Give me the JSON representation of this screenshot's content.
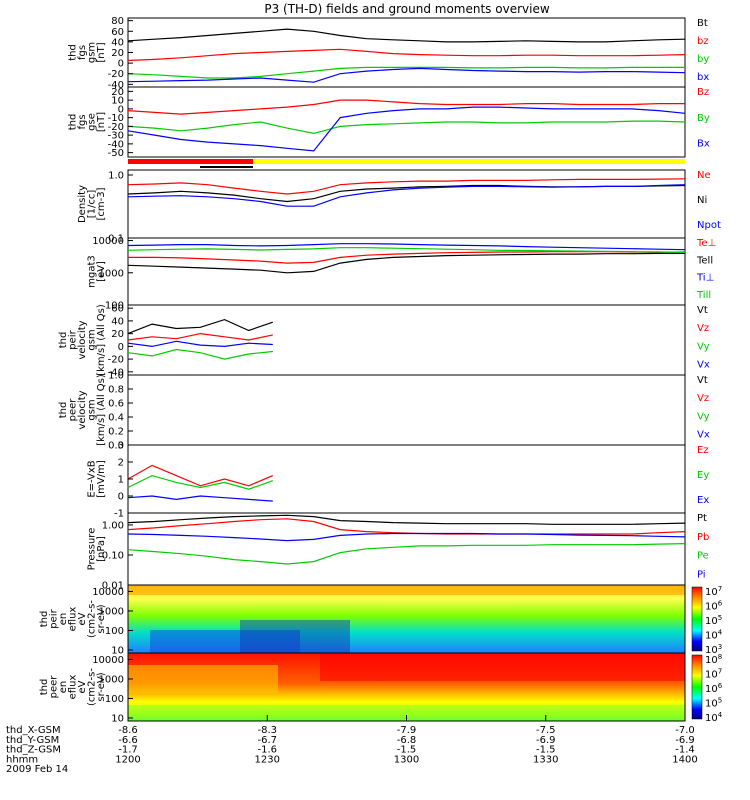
{
  "title": "P3 (TH-D) fields and ground moments overview",
  "colors": {
    "black": "#000000",
    "red": "#ff0000",
    "green": "#00cc00",
    "blue": "#0000ff",
    "yellow": "#ffff00"
  },
  "chart_data": [
    {
      "type": "line",
      "id": "fgs_gsm",
      "ylabel": [
        "thd",
        "fgs",
        "gsm",
        "[nT]"
      ],
      "yticks": [
        "80",
        "60",
        "40",
        "20",
        "0",
        "-20",
        "-40"
      ],
      "ylim": [
        -45,
        85
      ],
      "series": [
        {
          "name": "Bt",
          "color": "black",
          "y": [
            42,
            45,
            48,
            52,
            56,
            60,
            64,
            60,
            52,
            46,
            44,
            42,
            40,
            40,
            41,
            42,
            41,
            40,
            40,
            42,
            44,
            45
          ]
        },
        {
          "name": "bz",
          "color": "red",
          "y": [
            5,
            7,
            10,
            14,
            18,
            20,
            22,
            24,
            26,
            22,
            18,
            16,
            15,
            14,
            14,
            15,
            15,
            14,
            14,
            14,
            15,
            16
          ]
        },
        {
          "name": "by",
          "color": "green",
          "y": [
            -20,
            -22,
            -25,
            -28,
            -28,
            -25,
            -20,
            -15,
            -10,
            -8,
            -8,
            -8,
            -8,
            -9,
            -9,
            -8,
            -8,
            -9,
            -9,
            -8,
            -8,
            -8
          ]
        },
        {
          "name": "bx",
          "color": "blue",
          "y": [
            -35,
            -34,
            -33,
            -32,
            -30,
            -28,
            -32,
            -36,
            -20,
            -15,
            -12,
            -10,
            -12,
            -14,
            -15,
            -16,
            -16,
            -17,
            -16,
            -16,
            -17,
            -18
          ]
        }
      ]
    },
    {
      "type": "line",
      "id": "fgs_gse",
      "ylabel": [
        "thd",
        "fgs",
        "gse",
        "[nT]"
      ],
      "yticks": [
        "20",
        "10",
        "0",
        "-10",
        "-20",
        "-30",
        "-40",
        "-50"
      ],
      "ylim": [
        -55,
        25
      ],
      "series": [
        {
          "name": "Bz",
          "color": "red",
          "y": [
            -2,
            -4,
            -6,
            -4,
            -2,
            0,
            2,
            5,
            10,
            10,
            8,
            6,
            5,
            5,
            5,
            6,
            6,
            5,
            5,
            5,
            6,
            6
          ]
        },
        {
          "name": "By",
          "color": "green",
          "y": [
            -20,
            -22,
            -25,
            -22,
            -18,
            -15,
            -22,
            -28,
            -20,
            -18,
            -17,
            -16,
            -15,
            -15,
            -16,
            -16,
            -15,
            -15,
            -15,
            -14,
            -14,
            -15
          ]
        },
        {
          "name": "Bx",
          "color": "blue",
          "y": [
            -25,
            -30,
            -35,
            -38,
            -40,
            -42,
            -45,
            -48,
            -10,
            -5,
            -2,
            0,
            0,
            2,
            2,
            1,
            0,
            0,
            0,
            0,
            -2,
            -5
          ]
        }
      ]
    },
    {
      "type": "line",
      "id": "density",
      "ylabel": [
        "Density",
        "[1/cc]",
        "[cm-3]"
      ],
      "yticks": [
        "1.0",
        "0.1"
      ],
      "log": true,
      "ylim": [
        0.1,
        1.2
      ],
      "series": [
        {
          "name": "Ne",
          "color": "red",
          "y": [
            0.7,
            0.72,
            0.75,
            0.7,
            0.62,
            0.55,
            0.5,
            0.55,
            0.7,
            0.75,
            0.78,
            0.8,
            0.8,
            0.82,
            0.82,
            0.82,
            0.84,
            0.85,
            0.85,
            0.85,
            0.86,
            0.87
          ]
        },
        {
          "name": "Ni",
          "color": "black",
          "y": [
            0.5,
            0.52,
            0.55,
            0.52,
            0.48,
            0.42,
            0.38,
            0.42,
            0.55,
            0.6,
            0.62,
            0.65,
            0.66,
            0.68,
            0.68,
            0.66,
            0.65,
            0.65,
            0.66,
            0.66,
            0.67,
            0.68
          ]
        },
        {
          "name": "Npot",
          "color": "blue",
          "y": [
            0.45,
            0.46,
            0.47,
            0.45,
            0.42,
            0.38,
            0.32,
            0.32,
            0.45,
            0.52,
            0.58,
            0.62,
            0.64,
            0.66,
            0.66,
            0.65,
            0.64,
            0.65,
            0.66,
            0.66,
            0.68,
            0.7
          ]
        }
      ]
    },
    {
      "type": "line",
      "id": "temperature",
      "ylabel": [
        "mgat3",
        "[eV]"
      ],
      "yticks": [
        "10000",
        "1000",
        "100"
      ],
      "log": true,
      "ylim": [
        100,
        12000
      ],
      "series": [
        {
          "name": "Te⊥",
          "color": "red",
          "y": [
            3000,
            3000,
            2900,
            2700,
            2500,
            2300,
            2000,
            2100,
            3000,
            3500,
            3800,
            4000,
            4200,
            4300,
            4400,
            4400,
            4500,
            4500,
            4500,
            4400,
            4300,
            4400
          ]
        },
        {
          "name": "Tell",
          "color": "black",
          "y": [
            1700,
            1600,
            1500,
            1400,
            1300,
            1200,
            1000,
            1100,
            2000,
            2600,
            3000,
            3200,
            3400,
            3500,
            3600,
            3700,
            3800,
            3800,
            3900,
            3900,
            4000,
            4000
          ]
        },
        {
          "name": "Ti⊥",
          "color": "blue",
          "y": [
            7000,
            7200,
            7500,
            7500,
            7000,
            6800,
            7000,
            7500,
            8000,
            8000,
            7800,
            7500,
            7200,
            7000,
            6800,
            6500,
            6200,
            6000,
            5800,
            5600,
            5400,
            5200
          ]
        },
        {
          "name": "Till",
          "color": "green",
          "y": [
            5000,
            5200,
            5400,
            5500,
            5300,
            5100,
            5300,
            5500,
            6000,
            6000,
            5800,
            5600,
            5400,
            5200,
            5000,
            4900,
            4800,
            4700,
            4600,
            4500,
            4400,
            4300
          ]
        }
      ]
    },
    {
      "type": "line",
      "id": "peir_velocity",
      "ylabel": [
        "thd",
        "peir",
        "velocity",
        "gsm",
        "[km/s] (All Qs)"
      ],
      "yticks": [
        "60",
        "40",
        "20",
        "0",
        "-20",
        "-40"
      ],
      "ylim": [
        -45,
        65
      ],
      "xrange": [
        0,
        0.26
      ],
      "series": [
        {
          "name": "Vt",
          "color": "black",
          "y": [
            20,
            35,
            28,
            30,
            42,
            25,
            38
          ]
        },
        {
          "name": "Vz",
          "color": "red",
          "y": [
            10,
            15,
            12,
            20,
            15,
            10,
            18
          ]
        },
        {
          "name": "Vy",
          "color": "green",
          "y": [
            -10,
            -15,
            -5,
            -10,
            -20,
            -12,
            -8
          ]
        },
        {
          "name": "Vx",
          "color": "blue",
          "y": [
            5,
            0,
            8,
            2,
            0,
            5,
            3
          ]
        }
      ]
    },
    {
      "type": "line",
      "id": "peer_velocity",
      "ylabel": [
        "thd",
        "peer",
        "velocity",
        "gsm",
        "[km/s] (All Qs)"
      ],
      "yticks": [
        "1.0",
        "0.8",
        "0.6",
        "0.4",
        "0.2",
        "0.0"
      ],
      "ylim": [
        0,
        1.0
      ],
      "series": [
        {
          "name": "Vt",
          "color": "black",
          "y": []
        },
        {
          "name": "Vz",
          "color": "red",
          "y": []
        },
        {
          "name": "Vy",
          "color": "green",
          "y": []
        },
        {
          "name": "Vx",
          "color": "blue",
          "y": []
        }
      ]
    },
    {
      "type": "line",
      "id": "efield",
      "ylabel": [
        "E=-VxB",
        "[mV/m]"
      ],
      "yticks": [
        "3",
        "2",
        "1",
        "0",
        "-1"
      ],
      "ylim": [
        -1,
        3
      ],
      "xrange": [
        0,
        0.26
      ],
      "series": [
        {
          "name": "Ez",
          "color": "red",
          "y": [
            1.0,
            1.8,
            1.2,
            0.6,
            1.0,
            0.6,
            1.2
          ]
        },
        {
          "name": "Ey",
          "color": "green",
          "y": [
            0.5,
            1.2,
            0.8,
            0.5,
            0.8,
            0.4,
            0.9
          ]
        },
        {
          "name": "Ex",
          "color": "blue",
          "y": [
            -0.1,
            0.0,
            -0.2,
            0.0,
            -0.1,
            -0.2,
            -0.3
          ]
        }
      ]
    },
    {
      "type": "line",
      "id": "pressure",
      "ylabel": [
        "Pressure",
        "[nPa]"
      ],
      "yticks": [
        "1.00",
        "0.10",
        "0.01"
      ],
      "log": true,
      "ylim": [
        0.01,
        2.5
      ],
      "series": [
        {
          "name": "Pt",
          "color": "black",
          "y": [
            1.2,
            1.3,
            1.5,
            1.7,
            1.9,
            2.0,
            2.1,
            1.9,
            1.4,
            1.3,
            1.2,
            1.15,
            1.1,
            1.1,
            1.1,
            1.1,
            1.05,
            1.05,
            1.05,
            1.05,
            1.1,
            1.15
          ]
        },
        {
          "name": "Pb",
          "color": "red",
          "y": [
            0.7,
            0.8,
            0.95,
            1.1,
            1.3,
            1.5,
            1.6,
            1.3,
            0.7,
            0.6,
            0.55,
            0.52,
            0.5,
            0.5,
            0.5,
            0.5,
            0.5,
            0.5,
            0.5,
            0.5,
            0.55,
            0.6
          ]
        },
        {
          "name": "Pe",
          "color": "green",
          "y": [
            0.15,
            0.13,
            0.11,
            0.09,
            0.07,
            0.06,
            0.05,
            0.06,
            0.12,
            0.16,
            0.18,
            0.2,
            0.2,
            0.21,
            0.21,
            0.21,
            0.22,
            0.22,
            0.22,
            0.22,
            0.23,
            0.24
          ]
        },
        {
          "name": "Pi",
          "color": "blue",
          "y": [
            0.5,
            0.48,
            0.45,
            0.42,
            0.38,
            0.34,
            0.3,
            0.33,
            0.45,
            0.5,
            0.52,
            0.52,
            0.52,
            0.52,
            0.5,
            0.5,
            0.48,
            0.46,
            0.45,
            0.44,
            0.42,
            0.4
          ]
        }
      ]
    },
    {
      "type": "heatmap",
      "id": "peir_eflux",
      "ylabel": [
        "thd",
        "peir",
        "en",
        "eflux",
        "eV",
        "(cm2-s-",
        "sr-eV)"
      ],
      "yticks": [
        "10000",
        "1000",
        "100",
        "10"
      ],
      "colorbar_ticks": [
        "10^7",
        "10^6",
        "10^5",
        "10^4",
        "10^3"
      ]
    },
    {
      "type": "heatmap",
      "id": "peer_eflux",
      "ylabel": [
        "thd",
        "peer",
        "en",
        "eflux",
        "eV",
        "(cm2-s-",
        "sr-eV)"
      ],
      "yticks": [
        "10000",
        "1000",
        "100",
        "10"
      ],
      "colorbar_ticks": [
        "10^8",
        "10^7",
        "10^6",
        "10^5",
        "10^4"
      ]
    }
  ],
  "ephemeris": {
    "rows": [
      {
        "label": "thd_X-GSM",
        "values": [
          "-8.6",
          "-8.3",
          "-7.9",
          "-7.5",
          "-7.0"
        ]
      },
      {
        "label": "thd_Y-GSM",
        "values": [
          "-6.6",
          "-6.7",
          "-6.8",
          "-6.9",
          "-6.9"
        ]
      },
      {
        "label": "thd_Z-GSM",
        "values": [
          "-1.7",
          "-1.6",
          "-1.5",
          "-1.5",
          "-1.4"
        ]
      },
      {
        "label": "hhmm",
        "values": [
          "1200",
          "1230",
          "1300",
          "1330",
          "1400"
        ]
      }
    ],
    "date": "2009 Feb 14"
  }
}
